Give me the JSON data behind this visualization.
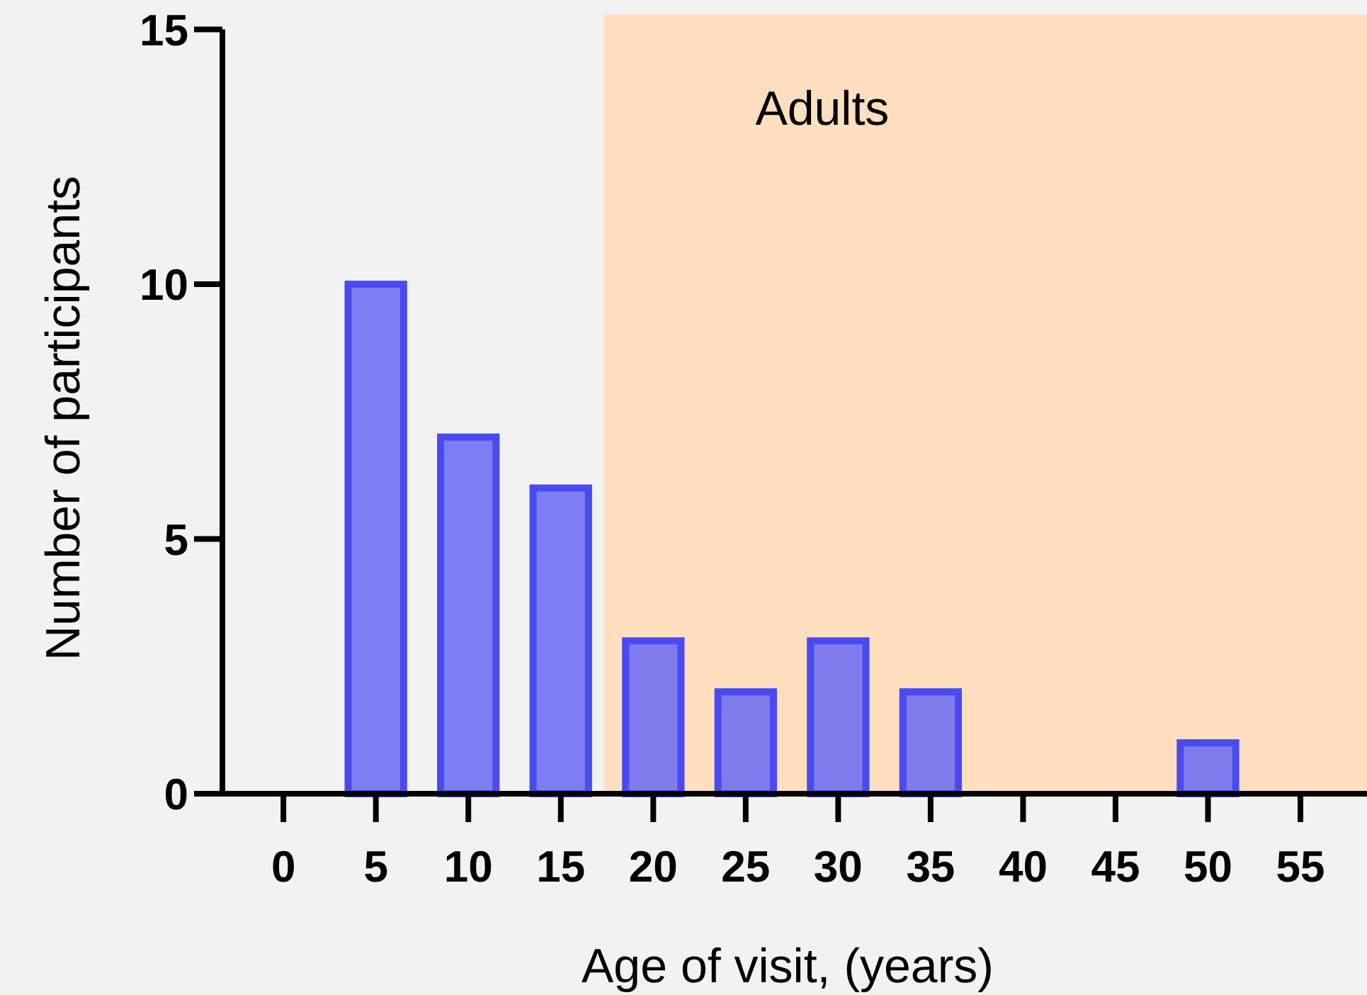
{
  "chart_data": {
    "type": "bar",
    "xlabel": "Age of visit, (years)",
    "ylabel": "Number of participants",
    "x": [
      5,
      10,
      15,
      20,
      25,
      30,
      35,
      50
    ],
    "values": [
      10,
      7,
      6,
      3,
      2,
      3,
      2,
      1
    ],
    "color": "#6a6af5",
    "xlim": [
      -3.3,
      58.6
    ],
    "ylim": [
      0,
      15.3
    ],
    "xticks": [
      0,
      5,
      10,
      15,
      20,
      25,
      30,
      35,
      40,
      45,
      50,
      55
    ],
    "yticks": [
      0,
      5,
      10,
      15
    ],
    "grid": false,
    "bands": [
      {
        "axis": "x",
        "from": 17.3,
        "to": 58.6,
        "label": "Adults",
        "color": "#ffdfc0"
      }
    ]
  }
}
